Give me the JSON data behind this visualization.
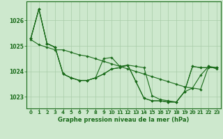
{
  "background_color": "#cde8cd",
  "line_color": "#1a6b1a",
  "grid_color": "#a8cca8",
  "xlabel": "Graphe pression niveau de la mer (hPa)",
  "xlim": [
    -0.5,
    23.5
  ],
  "ylim": [
    1022.55,
    1026.75
  ],
  "yticks": [
    1023,
    1024,
    1025,
    1026
  ],
  "xticks": [
    0,
    1,
    2,
    3,
    4,
    5,
    6,
    7,
    8,
    9,
    10,
    11,
    12,
    13,
    14,
    15,
    16,
    17,
    18,
    19,
    20,
    21,
    22,
    23
  ],
  "series": [
    [
      1025.3,
      1026.45,
      1025.1,
      1024.95,
      1023.9,
      1023.75,
      1023.65,
      1023.65,
      1023.75,
      1023.9,
      1024.1,
      1024.15,
      1024.25,
      1024.2,
      1024.15,
      1023.05,
      1022.9,
      1022.85,
      1022.8,
      1023.2,
      1023.35,
      1023.85,
      1024.2,
      1024.15
    ],
    [
      1025.3,
      1026.45,
      1025.1,
      1024.95,
      1023.9,
      1023.75,
      1023.65,
      1023.65,
      1023.75,
      1023.9,
      1024.1,
      1024.15,
      1024.25,
      1023.6,
      1022.95,
      1022.85,
      1022.85,
      1022.8,
      1022.8,
      1023.2,
      1024.2,
      1024.15,
      1024.15,
      1024.15
    ],
    [
      1025.3,
      1026.45,
      1025.1,
      1024.95,
      1023.9,
      1023.75,
      1023.65,
      1023.65,
      1023.75,
      1024.5,
      1024.55,
      1024.2,
      1024.25,
      1023.6,
      1022.95,
      1022.85,
      1022.85,
      1022.8,
      1022.8,
      1023.2,
      1024.2,
      1024.15,
      1024.15,
      1024.15
    ],
    [
      1025.25,
      1025.05,
      1024.95,
      1024.85,
      1024.85,
      1024.75,
      1024.65,
      1024.6,
      1024.5,
      1024.4,
      1024.3,
      1024.2,
      1024.1,
      1024.0,
      1023.9,
      1023.8,
      1023.7,
      1023.6,
      1023.5,
      1023.4,
      1023.35,
      1023.3,
      1024.2,
      1024.1
    ]
  ]
}
